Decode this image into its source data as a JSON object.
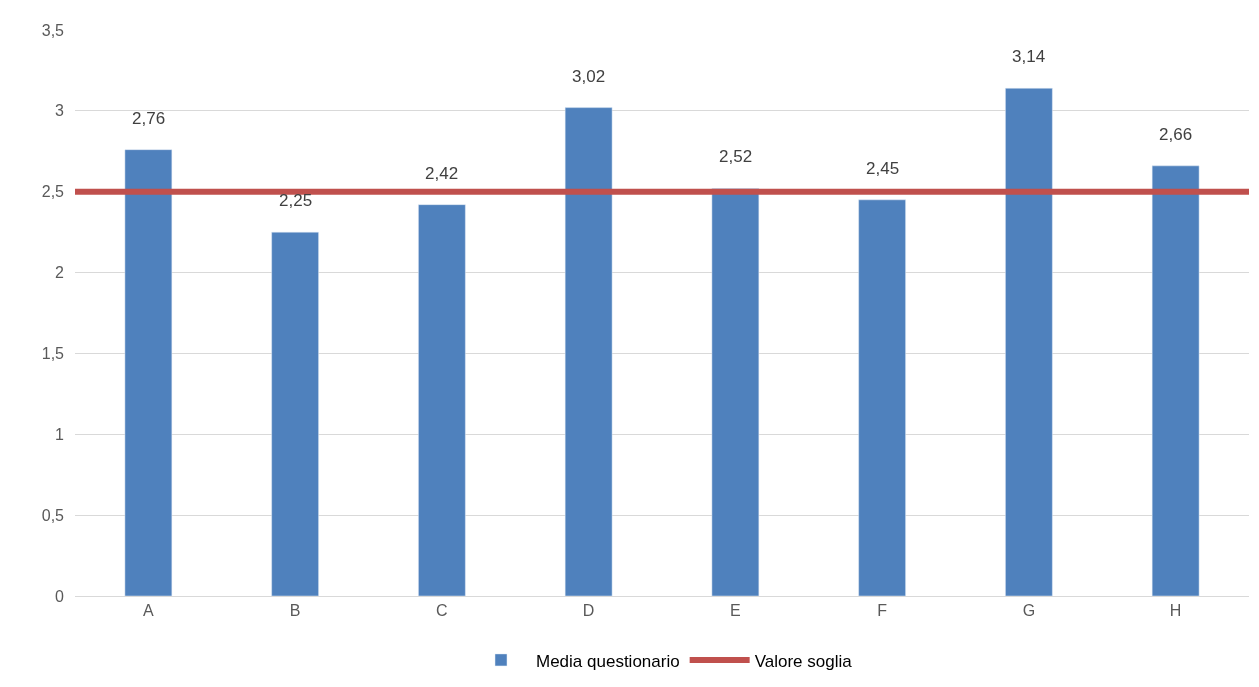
{
  "chart_data": {
    "type": "bar",
    "categories": [
      "A",
      "B",
      "C",
      "D",
      "E",
      "F",
      "G",
      "H"
    ],
    "series": [
      {
        "name": "Media questionario",
        "color": "#4f81bd",
        "values": [
          2.76,
          2.25,
          2.42,
          3.02,
          2.52,
          2.45,
          3.14,
          2.66
        ],
        "value_labels": [
          "2,76",
          "2,25",
          "2,42",
          "3,02",
          "2,52",
          "2,45",
          "3,14",
          "2,66"
        ]
      }
    ],
    "ref_lines": [
      {
        "axis": "y",
        "value": 2.5,
        "label": "Valore soglia",
        "color": "#c0504d",
        "line_style": "solid"
      }
    ],
    "ylim": [
      0,
      3.5
    ],
    "yticks": [
      0,
      {
        "value": 0.5,
        "label": "0,5"
      },
      1,
      {
        "value": 1.5,
        "label": "1,5"
      },
      2,
      {
        "value": 2.5,
        "label": "2,5"
      },
      3,
      {
        "value": 3.5,
        "label": "3,5"
      }
    ],
    "grid": "y",
    "legend": "bottom"
  }
}
